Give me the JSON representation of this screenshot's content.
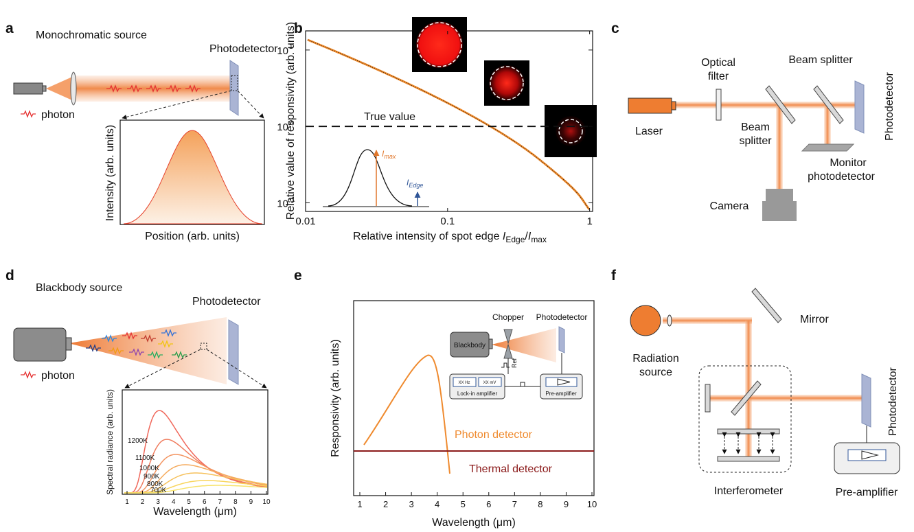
{
  "panels": {
    "a": {
      "letter": "a",
      "title": "Monochromatic source",
      "detector": "Photodetector",
      "photon": "photon",
      "y_label": "Intensity (arb. units)",
      "x_label": "Position (arb. units)"
    },
    "b": {
      "letter": "b",
      "y_label": "Relative value of responsivity (arb. units)",
      "x_label": {
        "text": "Relative intensity of spot edge ",
        "i1": "I",
        "sub1": "Edge",
        "slash": "/",
        "i2": "I",
        "sub2": "max"
      },
      "log_scale": true,
      "xlim": [
        0.01,
        1.05
      ],
      "ylim": [
        0.077,
        17.8
      ],
      "xticks": [
        0.01,
        0.1,
        1
      ],
      "yticks": [
        {
          "value": 10,
          "label": "10",
          "exponent": "1"
        },
        {
          "value": 1,
          "label": "10",
          "exponent": "0"
        },
        {
          "value": 0.1,
          "label": "10",
          "exponent": "-1"
        }
      ],
      "annotation": "True value",
      "true_value": 1,
      "inset": {
        "i_max": "I",
        "i_max_sub": "max",
        "i_edge": "I",
        "i_edge_sub": "Edge"
      }
    },
    "c": {
      "letter": "c",
      "optical_filter": [
        "Optical",
        "filter"
      ],
      "beam_splitter_top": "Beam splitter",
      "beam_splitter": [
        "Beam",
        "splitter"
      ],
      "laser": "Laser",
      "monitor": [
        "Monitor",
        "photodetector"
      ],
      "camera": "Camera",
      "detector": "Photodetector"
    },
    "d": {
      "letter": "d",
      "title": "Blackbody source",
      "detector": "Photodetector",
      "photon": "photon",
      "y_label": "Spectral radiance (arb. units)",
      "x_label": "Wavelength (μm)",
      "xlim": [
        0.69,
        10.09
      ],
      "xticks": [
        1,
        2,
        3,
        4,
        5,
        6,
        7,
        8,
        9,
        10
      ],
      "curve_labels": [
        "1200K",
        "1100K",
        "1000K",
        "900K",
        "800K",
        "700K"
      ]
    },
    "e": {
      "letter": "e",
      "y_label": "Responsivity (arb. units)",
      "x_label": "Wavelength (μm)",
      "xlim": [
        0.76,
        10.08
      ],
      "xticks": [
        1,
        2,
        3,
        4,
        5,
        6,
        7,
        8,
        9,
        10
      ],
      "photon_label": "Photon detector",
      "thermal_label": "Thermal detector",
      "inset": {
        "blackbody": "Blackbody",
        "chopper": "Chopper",
        "detector": "Photodetector",
        "ref": "Ref",
        "hz": "XX Hz",
        "mv": "XX mV",
        "lockin": "Lock-in amplifier",
        "preamp": "Pre-amplifier"
      }
    },
    "f": {
      "letter": "f",
      "source": [
        "Radiation",
        "source"
      ],
      "mirror": "Mirror",
      "interferometer": "Interferometer",
      "detector": "Photodetector",
      "preamp": "Pre-amplifier"
    }
  }
}
